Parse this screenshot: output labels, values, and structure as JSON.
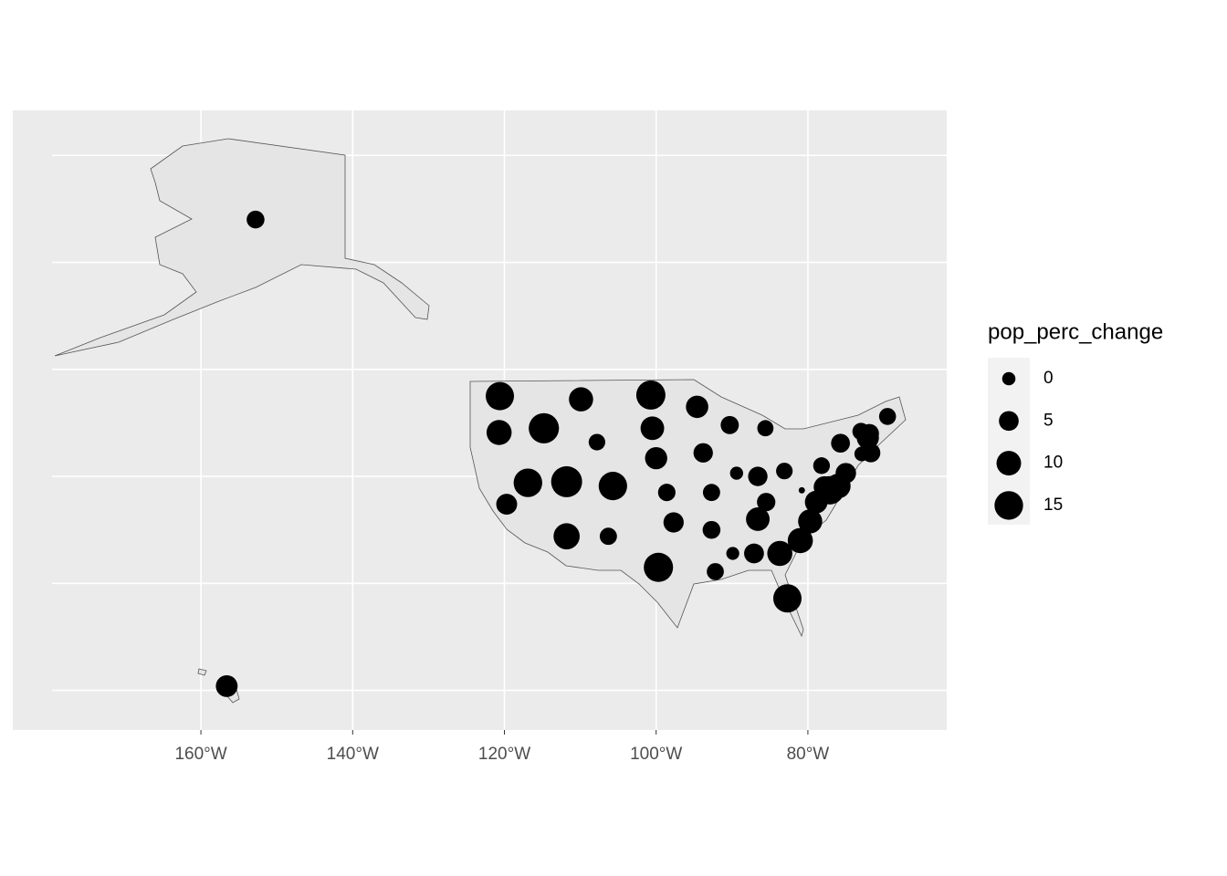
{
  "chart_data": {
    "type": "scatter",
    "x": [
      -152.8,
      -156.6,
      -120.6,
      -120.7,
      -119.7,
      -116.9,
      -114.8,
      -109.9,
      -107.8,
      -111.8,
      -105.7,
      -111.8,
      -106.3,
      -100.7,
      -100.5,
      -100.0,
      -98.6,
      -97.7,
      -99.7,
      -94.6,
      -93.8,
      -92.7,
      -92.7,
      -92.2,
      -90.3,
      -89.4,
      -89.9,
      -85.6,
      -86.6,
      -85.5,
      -86.6,
      -87.1,
      -83.7,
      -82.7,
      -83.1,
      -80.8,
      -81.0,
      -79.7,
      -78.9,
      -78.2,
      -77.8,
      -77.1,
      -76.0,
      -75.0,
      -75.7,
      -72.9,
      -71.7,
      -72.1,
      -73.0,
      -71.9,
      -69.5
    ],
    "y": [
      64.0,
      20.4,
      47.5,
      44.1,
      37.4,
      39.4,
      44.5,
      47.2,
      43.2,
      39.5,
      39.1,
      34.4,
      34.4,
      47.6,
      44.5,
      41.7,
      38.5,
      35.7,
      31.5,
      46.5,
      42.2,
      38.5,
      35.0,
      31.1,
      44.8,
      40.3,
      32.8,
      44.5,
      40.0,
      37.6,
      36.0,
      32.8,
      32.8,
      28.6,
      40.5,
      38.7,
      34.0,
      35.8,
      37.6,
      41.0,
      39.0,
      38.7,
      39.1,
      40.3,
      43.1,
      42.1,
      42.2,
      43.6,
      44.2,
      44.0,
      45.6
    ],
    "size": [
      3.3,
      7.0,
      14.6,
      10.6,
      6.1,
      15.0,
      17.3,
      9.6,
      2.3,
      18.4,
      14.8,
      11.9,
      2.8,
      15.8,
      8.9,
      7.4,
      3.0,
      5.5,
      15.9,
      7.6,
      4.7,
      2.8,
      3.3,
      2.7,
      3.6,
      -0.1,
      -0.2,
      2.0,
      4.7,
      3.8,
      8.9,
      5.1,
      10.6,
      14.6,
      2.3,
      -3.2,
      10.7,
      9.5,
      7.9,
      2.4,
      7.0,
      14.6,
      10.2,
      5.7,
      4.2,
      0.9,
      4.3,
      7.4,
      2.8,
      4.6,
      2.6
    ],
    "color": "#000000",
    "xlim": [
      -184.8,
      -61.7
    ],
    "ylim": [
      16.3,
      74.2
    ],
    "xticks": [
      {
        "value": -160,
        "label": "160°W"
      },
      {
        "value": -140,
        "label": "140°W"
      },
      {
        "value": -120,
        "label": "120°W"
      },
      {
        "value": -100,
        "label": "100°W"
      },
      {
        "value": -80,
        "label": "80°W"
      }
    ],
    "yticks": [
      20,
      30,
      40,
      50,
      60,
      70
    ],
    "grid": true,
    "legend": {
      "title": "pop_perc_change",
      "values": [
        0,
        5,
        10,
        15
      ],
      "position": "right"
    }
  }
}
